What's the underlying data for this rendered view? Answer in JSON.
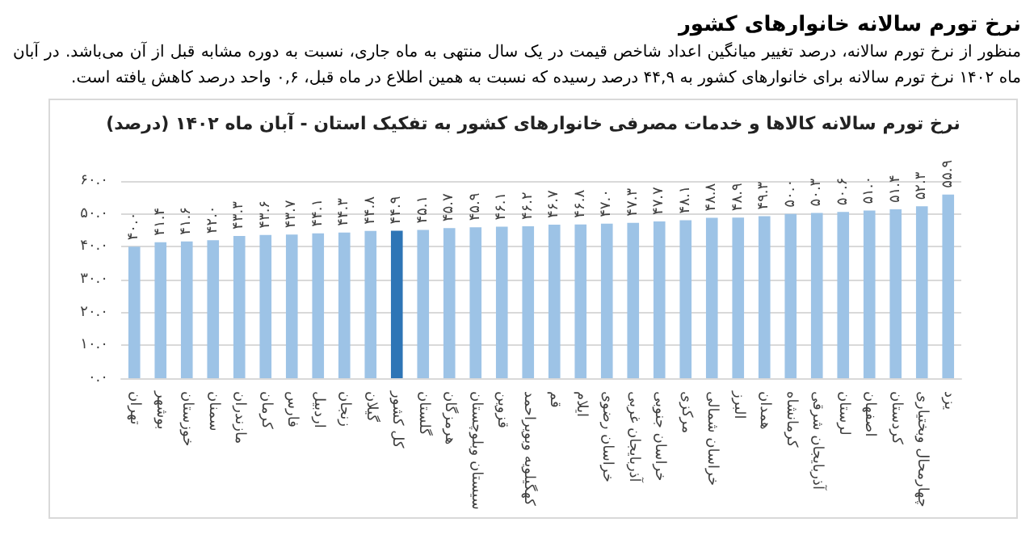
{
  "chart_data": {
    "type": "bar",
    "title": "نرخ تورم سالانه خانوارهای کشور",
    "subtitle": "نرخ تورم سالانه کالاها و خدمات مصرفی خانوارهای کشور به تفکیک استان - آبان ماه ۱۴۰۲ (درصد)",
    "annotations": [
      "منظور از نرخ تورم سالانه، درصد تغییر میانگین اعداد شاخص قیمت در یک سال منتهی به ماه جاری، نسبت به دوره مشابه قبل از آن می‌باشد. در آبان ماه ۱۴۰۲ نرخ تورم سالانه برای خانوارهای کشور به ۴۴,۹ درصد رسیده که نسبت به همین اطلاع در ماه قبل، ۰,۶ واحد درصد کاهش یافته است."
    ],
    "categories": [
      "تهران",
      "بوشهر",
      "خوزستان",
      "سمنان",
      "مازندران",
      "کرمان",
      "فارس",
      "اردبیل",
      "زنجان",
      "گیلان",
      "کل کشور",
      "گلستان",
      "هرمزگان",
      "سیستان وبلوچستان",
      "قزوین",
      "کهگیلویه وبویراحمد",
      "قم",
      "ایلام",
      "خراسان رضوی",
      "آذربایجان غربی",
      "خراسان جنوبی",
      "مرکزی",
      "خراسان شمالی",
      "البرز",
      "همدان",
      "کرمانشاه",
      "آذربایجان شرقی",
      "لرستان",
      "اصفهان",
      "کردستان",
      "چهارمحال وبختیاری",
      "یزد"
    ],
    "values": [
      40.0,
      41.4,
      41.6,
      42.0,
      43.3,
      43.6,
      43.7,
      44.1,
      44.3,
      44.8,
      44.9,
      45.1,
      45.7,
      45.9,
      46.1,
      46.2,
      46.7,
      46.8,
      47.0,
      47.3,
      47.7,
      48.1,
      48.8,
      48.9,
      49.3,
      50.0,
      50.3,
      50.6,
      51.0,
      51.4,
      52.3,
      55.9
    ],
    "value_labels": [
      "۴۰.۰",
      "۴۱.۴",
      "۴۱.۶",
      "۴۲.۰",
      "۴۳.۳",
      "۴۳.۶",
      "۴۳.۷",
      "۴۴.۱",
      "۴۴.۳",
      "۴۴.۸",
      "۴۴.۹",
      "۴۵.۱",
      "۴۵.۷",
      "۴۵.۹",
      "۴۶.۱",
      "۴۶.۲",
      "۴۶.۷",
      "۴۶.۸",
      "۴۷.۰",
      "۴۷.۳",
      "۴۷.۷",
      "۴۸.۱",
      "۴۸.۸",
      "۴۸.۹",
      "۴۹.۳",
      "۵۰.۰",
      "۵۰.۳",
      "۵۰.۶",
      "۵۱.۰",
      "۵۱.۴",
      "۵۲.۳",
      "۵۵.۹"
    ],
    "colors": [
      "#9dc3e6",
      "#9dc3e6",
      "#9dc3e6",
      "#9dc3e6",
      "#9dc3e6",
      "#9dc3e6",
      "#9dc3e6",
      "#9dc3e6",
      "#9dc3e6",
      "#9dc3e6",
      "#2e75b6",
      "#9dc3e6",
      "#9dc3e6",
      "#9dc3e6",
      "#9dc3e6",
      "#9dc3e6",
      "#9dc3e6",
      "#9dc3e6",
      "#9dc3e6",
      "#9dc3e6",
      "#9dc3e6",
      "#9dc3e6",
      "#9dc3e6",
      "#9dc3e6",
      "#9dc3e6",
      "#9dc3e6",
      "#9dc3e6",
      "#9dc3e6",
      "#9dc3e6",
      "#9dc3e6",
      "#9dc3e6",
      "#9dc3e6"
    ],
    "ylim": [
      0,
      60
    ],
    "yticks": [
      {
        "value": 0,
        "label": "۰.۰"
      },
      {
        "value": 10,
        "label": "۱۰.۰"
      },
      {
        "value": 20,
        "label": "۲۰.۰"
      },
      {
        "value": 30,
        "label": "۳۰.۰"
      },
      {
        "value": 40,
        "label": "۴۰.۰"
      },
      {
        "value": 50,
        "label": "۵۰.۰"
      },
      {
        "value": 60,
        "label": "۶۰.۰"
      }
    ],
    "grid": "y"
  }
}
